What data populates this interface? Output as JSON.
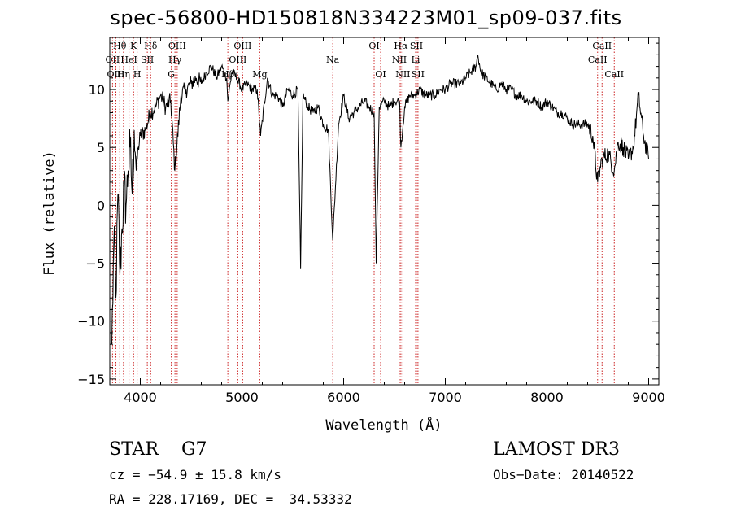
{
  "chart_data": {
    "type": "line",
    "title": "spec-56800-HD150818N334223M01_sp09-037.fits",
    "xlabel": "Wavelength (Å)",
    "ylabel": "Flux (relative)",
    "xlim": [
      3700,
      9100
    ],
    "ylim": [
      -15.5,
      14.5
    ],
    "xticks": [
      4000,
      5000,
      6000,
      7000,
      8000,
      9000
    ],
    "yticks": [
      -15,
      -10,
      -5,
      0,
      5,
      10
    ],
    "grid": false,
    "series": [
      {
        "name": "flux",
        "x": [
          3720,
          3740,
          3760,
          3780,
          3800,
          3820,
          3840,
          3860,
          3880,
          3900,
          3920,
          3940,
          3960,
          3980,
          4000,
          4050,
          4100,
          4150,
          4200,
          4250,
          4300,
          4340,
          4400,
          4450,
          4500,
          4550,
          4600,
          4650,
          4700,
          4750,
          4800,
          4850,
          4861,
          4900,
          4950,
          5000,
          5050,
          5100,
          5150,
          5183,
          5250,
          5300,
          5350,
          5400,
          5450,
          5500,
          5550,
          5577,
          5600,
          5650,
          5700,
          5750,
          5800,
          5850,
          5893,
          5950,
          6000,
          6050,
          6100,
          6150,
          6200,
          6250,
          6300,
          6320,
          6350,
          6400,
          6450,
          6500,
          6550,
          6563,
          6600,
          6650,
          6700,
          6750,
          6800,
          6850,
          6900,
          6950,
          7000,
          7050,
          7100,
          7150,
          7200,
          7250,
          7300,
          7320,
          7350,
          7400,
          7450,
          7500,
          7550,
          7600,
          7650,
          7700,
          7750,
          7800,
          7850,
          7900,
          7950,
          8000,
          8050,
          8100,
          8150,
          8200,
          8250,
          8300,
          8350,
          8400,
          8450,
          8498,
          8542,
          8600,
          8662,
          8700,
          8750,
          8800,
          8850,
          8900,
          8950,
          9000
        ],
        "y": [
          -12,
          -3,
          -8,
          1,
          -6,
          -2,
          1.5,
          0,
          3,
          5,
          1,
          6.5,
          3,
          5,
          6,
          6.5,
          8,
          8.5,
          9.5,
          8.5,
          9,
          3,
          9.5,
          10,
          10.5,
          11,
          10.5,
          11.5,
          12,
          11,
          12,
          11,
          9,
          11.5,
          11,
          10,
          10.5,
          10,
          10,
          6,
          11,
          9.5,
          9.5,
          8.5,
          10,
          9.5,
          10,
          -5.5,
          9.5,
          8.5,
          8,
          8.5,
          7,
          6.5,
          -3,
          7,
          9.5,
          7.5,
          8,
          8.5,
          9,
          8.5,
          8,
          -5,
          8.5,
          9,
          8.5,
          9,
          9,
          5,
          8.5,
          9.5,
          9.5,
          10,
          9.5,
          9.5,
          9.5,
          10,
          10,
          10.5,
          10.5,
          10.5,
          11,
          11.5,
          12,
          13,
          11.5,
          11,
          10.5,
          10,
          10.5,
          10,
          10,
          9.5,
          9.5,
          9,
          9,
          9,
          8.5,
          9,
          8.5,
          8,
          8,
          7.5,
          7,
          7,
          7,
          7,
          6,
          2,
          4,
          4.5,
          3,
          5.5,
          5,
          4,
          5,
          9.5,
          6,
          4
        ]
      }
    ],
    "lines": [
      {
        "label": "Hθ",
        "x": 3798,
        "row": 0
      },
      {
        "label": "OII",
        "x": 3727,
        "row": 1
      },
      {
        "label": "OIII",
        "x": 3760,
        "row": 2
      },
      {
        "label": "Hη",
        "x": 3835,
        "row": 2
      },
      {
        "label": "HeI",
        "x": 3889,
        "row": 1
      },
      {
        "label": "K",
        "x": 3934,
        "row": 0
      },
      {
        "label": "H",
        "x": 3969,
        "row": 2
      },
      {
        "label": "SII",
        "x": 4069,
        "row": 1
      },
      {
        "label": "Hδ",
        "x": 4102,
        "row": 0
      },
      {
        "label": "G",
        "x": 4305,
        "row": 2
      },
      {
        "label": "Hγ",
        "x": 4341,
        "row": 1
      },
      {
        "label": "OIII",
        "x": 4363,
        "row": 0
      },
      {
        "label": "Hβ",
        "x": 4861,
        "row": 2
      },
      {
        "label": "OIII",
        "x": 4959,
        "row": 1
      },
      {
        "label": "OIII",
        "x": 5007,
        "row": 0
      },
      {
        "label": "Mg",
        "x": 5175,
        "row": 2
      },
      {
        "label": "Na",
        "x": 5893,
        "row": 1
      },
      {
        "label": "OI",
        "x": 6300,
        "row": 0
      },
      {
        "label": "OI",
        "x": 6364,
        "row": 2
      },
      {
        "label": "NII",
        "x": 6548,
        "row": 1
      },
      {
        "label": "Hα",
        "x": 6563,
        "row": 0
      },
      {
        "label": "NII",
        "x": 6583,
        "row": 2
      },
      {
        "label": "Li",
        "x": 6708,
        "row": 1
      },
      {
        "label": "SII",
        "x": 6716,
        "row": 0
      },
      {
        "label": "SII",
        "x": 6731,
        "row": 2
      },
      {
        "label": "CaII",
        "x": 8498,
        "row": 1
      },
      {
        "label": "CaII",
        "x": 8542,
        "row": 0
      },
      {
        "label": "CaII",
        "x": 8662,
        "row": 2
      }
    ]
  },
  "info": {
    "object_type": "STAR",
    "subclass": "G7",
    "survey": "LAMOST DR3",
    "cz": "cz = −54.9 ± 15.8 km/s",
    "obs_date": "Obs−Date: 20140522",
    "coords": "RA = 228.17169, DEC =  34.53332"
  },
  "colors": {
    "line_marker": "#cc2222",
    "spectrum": "#000000",
    "background": "#ffffff"
  }
}
